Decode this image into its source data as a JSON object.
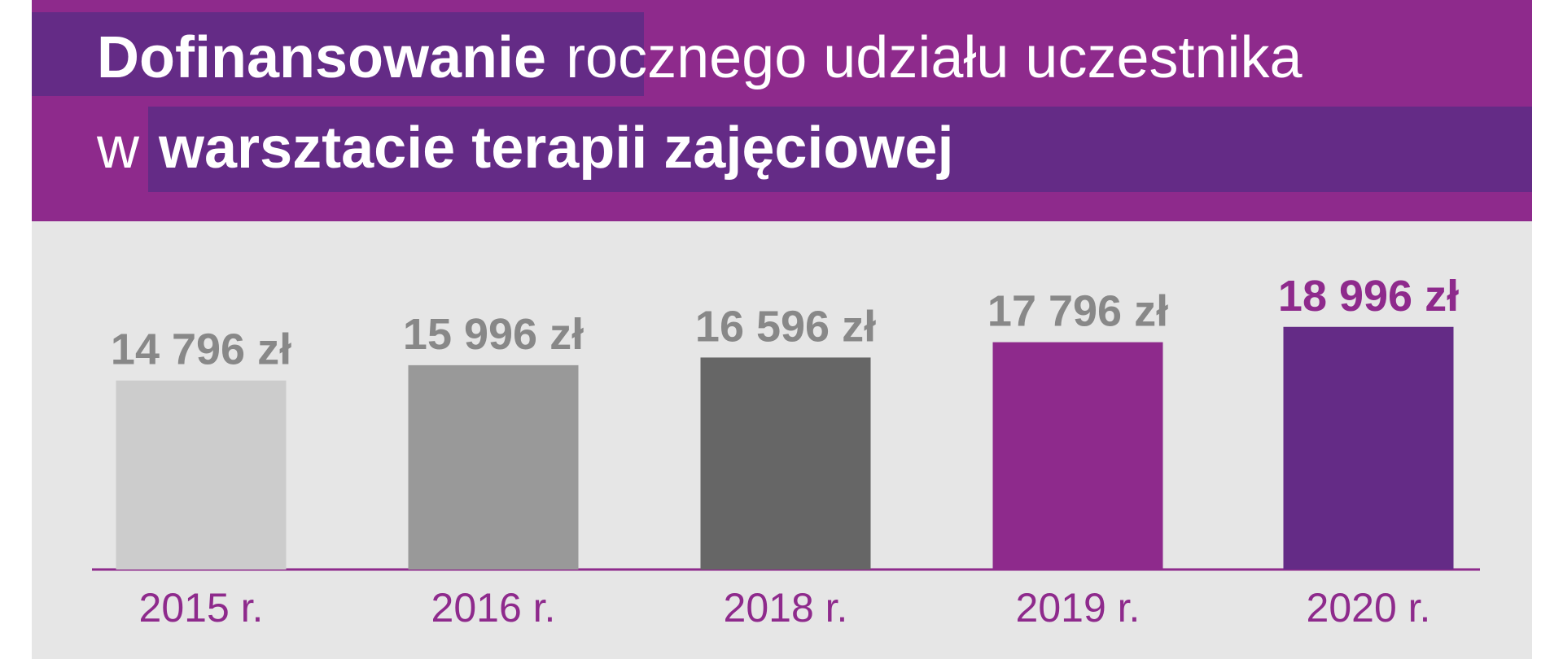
{
  "chart_data": {
    "type": "bar",
    "title_parts": [
      "Dofinansowanie",
      "rocznego udziału uczestnika",
      "w",
      "warsztacie terapii zajęciowej"
    ],
    "categories": [
      "2015 r.",
      "2016 r.",
      "2018 r.",
      "2019 r.",
      "2020 r."
    ],
    "values": [
      14796,
      15996,
      16596,
      17796,
      18996
    ],
    "value_labels": [
      "14 796 zł",
      "15 996 zł",
      "16 596 zł",
      "17 796 zł",
      "18 996 zł"
    ],
    "colors": [
      "#cccccc",
      "#999999",
      "#666666",
      "#8e2a8c",
      "#642b86"
    ],
    "label_colors": [
      "#888888",
      "#888888",
      "#888888",
      "#888888",
      "#8e2a8c"
    ],
    "ylim": [
      0,
      20000
    ]
  }
}
